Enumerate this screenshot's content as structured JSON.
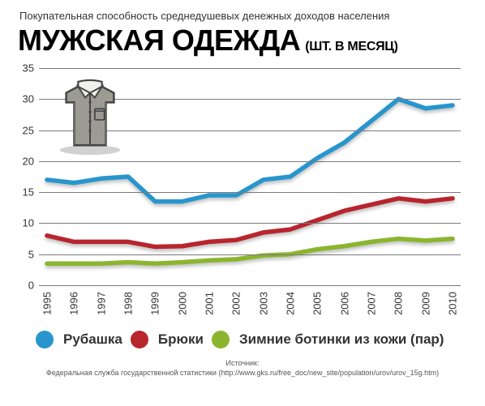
{
  "subtitle": "Покупательная способность среднедушевых денежных доходов населения",
  "title": "МУЖСКАЯ ОДЕЖДА",
  "title_suffix": "(ШТ. В МЕСЯЦ)",
  "chart": {
    "type": "line",
    "background_color": "#ffffff",
    "grid_color": "#7a7a7a",
    "line_width": 5.5,
    "ylim": [
      0,
      35
    ],
    "ytick_step": 5,
    "yticks": [
      0,
      5,
      10,
      15,
      20,
      25,
      30,
      35
    ],
    "xlabels": [
      "1995",
      "1996",
      "1997",
      "1998",
      "1999",
      "2000",
      "2001",
      "2002",
      "2003",
      "2004",
      "2005",
      "2006",
      "2007",
      "2008",
      "2009",
      "2010"
    ],
    "series": [
      {
        "name": "Рубашка",
        "color": "#2895cd",
        "values": [
          17,
          16.5,
          17.2,
          17.5,
          13.5,
          13.5,
          14.5,
          14.5,
          17,
          17.5,
          20.5,
          23,
          26.5,
          30,
          28.5,
          29
        ]
      },
      {
        "name": "Брюки",
        "color": "#b8252d",
        "values": [
          8,
          7,
          7,
          7,
          6.2,
          6.3,
          7,
          7.3,
          8.5,
          9,
          10.5,
          12,
          13,
          14,
          13.5,
          14
        ]
      },
      {
        "name": "Ботинки",
        "color": "#8bb52f",
        "values": [
          3.5,
          3.5,
          3.5,
          3.7,
          3.5,
          3.7,
          4,
          4.2,
          4.8,
          5,
          5.8,
          6.3,
          7,
          7.5,
          7.2,
          7.5
        ]
      }
    ]
  },
  "legend": [
    {
      "label": "Рубашка",
      "color": "#2895cd"
    },
    {
      "label": "Брюки",
      "color": "#b8252d"
    },
    {
      "label": "Зимние ботинки из кожи (пар)",
      "color": "#8bb52f"
    }
  ],
  "source_label": "Источник:",
  "source_text": "Федеральная служба государственной статистики (http://www.gks.ru/free_doc/new_site/population/urov/urov_15g.htm)",
  "shirt_icon_colors": {
    "body": "#9b9b93",
    "outline": "#444444",
    "detail": "#6e6e66",
    "collar": "#f0f0ec"
  }
}
